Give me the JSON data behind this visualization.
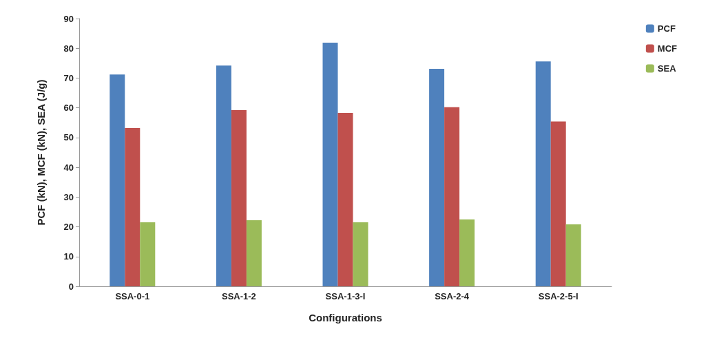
{
  "chart_data": {
    "type": "bar",
    "xlabel": "Configurations",
    "ylabel": "PCF (kN), MCF (kN), SEA (J/g)",
    "categories": [
      "SSA-0-1",
      "SSA-1-2",
      "SSA-1-3-I",
      "SSA-2-4",
      "SSA-2-5-I"
    ],
    "series": [
      {
        "name": "PCF",
        "color": "#4f81bd",
        "values": [
          71.2,
          74.2,
          81.9,
          73.1,
          75.6
        ]
      },
      {
        "name": "MCF",
        "color": "#c0504d",
        "values": [
          53.2,
          59.2,
          58.3,
          60.2,
          55.4
        ]
      },
      {
        "name": "SEA",
        "color": "#9bbb59",
        "values": [
          21.5,
          22.2,
          21.5,
          22.5,
          20.8
        ]
      }
    ],
    "ylim": [
      0,
      90
    ],
    "yticks": [
      0,
      10,
      20,
      30,
      40,
      50,
      60,
      70,
      80,
      90
    ],
    "grid": false,
    "legend": "top right"
  }
}
